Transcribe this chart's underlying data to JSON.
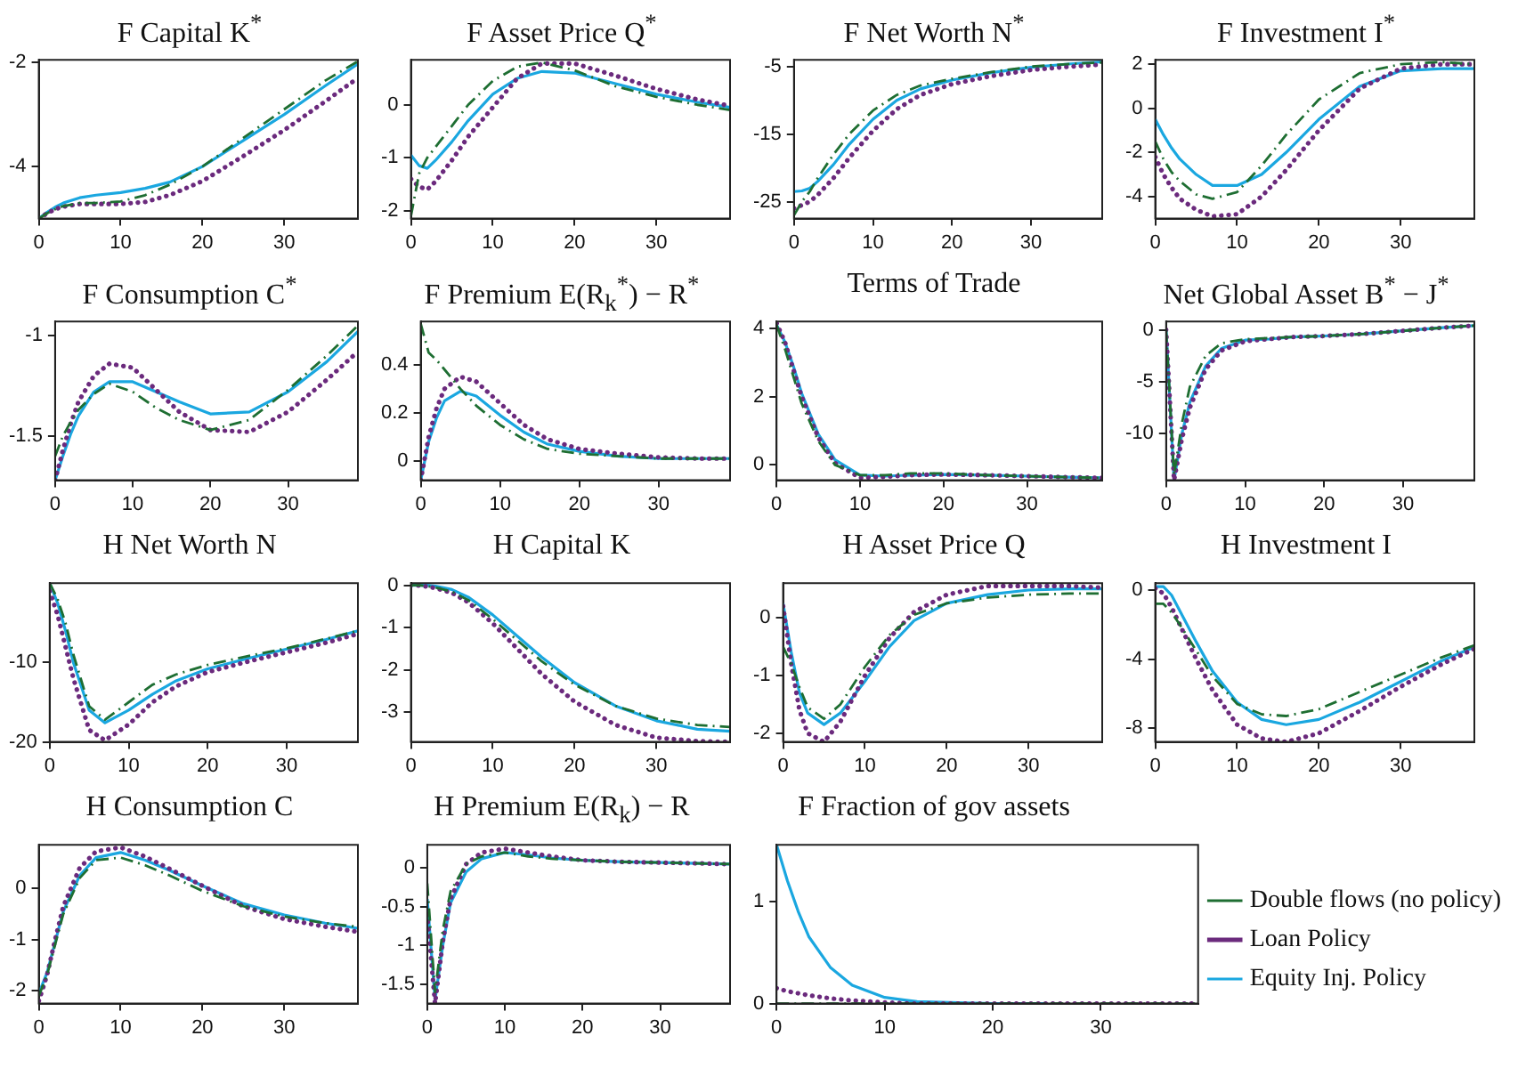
{
  "chart_data": [
    {
      "type": "line",
      "title": "F Capital K$^{*}$",
      "x": [
        0,
        1,
        2,
        3,
        5,
        7,
        10,
        13,
        16,
        20,
        25,
        30,
        35,
        39
      ],
      "xlim": [
        0,
        39
      ],
      "xticks": [
        0,
        10,
        20,
        30
      ],
      "ylim": [
        -5,
        -1.95
      ],
      "yticks": [
        -4,
        -2
      ],
      "grid": false,
      "legend": false,
      "marker": "none",
      "series": [
        {
          "color": "#1e6e32",
          "line_style": "dashdot",
          "values": [
            -5,
            -4.9,
            -4.82,
            -4.76,
            -4.7,
            -4.7,
            -4.67,
            -4.55,
            -4.35,
            -4.0,
            -3.45,
            -2.9,
            -2.35,
            -1.98
          ]
        },
        {
          "color": "#6b2a7d",
          "line_style": "dotted",
          "values": [
            -5,
            -4.9,
            -4.82,
            -4.77,
            -4.72,
            -4.72,
            -4.72,
            -4.68,
            -4.55,
            -4.28,
            -3.8,
            -3.3,
            -2.75,
            -2.3
          ]
        },
        {
          "color": "#1aa7e0",
          "line_style": "solid",
          "values": [
            -5,
            -4.88,
            -4.78,
            -4.7,
            -4.6,
            -4.55,
            -4.5,
            -4.42,
            -4.3,
            -4.0,
            -3.5,
            -3.0,
            -2.45,
            -2.03
          ]
        }
      ]
    },
    {
      "type": "line",
      "title": "F Asset Price Q$^{*}$",
      "x": [
        0,
        1,
        2,
        3,
        5,
        7,
        10,
        13,
        16,
        20,
        25,
        30,
        35,
        39
      ],
      "xlim": [
        0,
        39
      ],
      "xticks": [
        0,
        10,
        20,
        30
      ],
      "ylim": [
        -2.15,
        0.85
      ],
      "yticks": [
        -2,
        -1,
        0
      ],
      "grid": false,
      "legend": false,
      "marker": "none",
      "series": [
        {
          "color": "#1e6e32",
          "line_style": "dashdot",
          "values": [
            -2.1,
            -1.3,
            -1.0,
            -0.8,
            -0.4,
            0.0,
            0.45,
            0.72,
            0.8,
            0.65,
            0.35,
            0.15,
            0.0,
            -0.1
          ]
        },
        {
          "color": "#6b2a7d",
          "line_style": "dotted",
          "values": [
            -1.4,
            -1.55,
            -1.6,
            -1.45,
            -1.05,
            -0.6,
            -0.05,
            0.5,
            0.78,
            0.78,
            0.55,
            0.3,
            0.1,
            -0.02
          ]
        },
        {
          "color": "#1aa7e0",
          "line_style": "solid",
          "values": [
            -0.95,
            -1.15,
            -1.2,
            -1.05,
            -0.7,
            -0.3,
            0.2,
            0.5,
            0.63,
            0.6,
            0.4,
            0.2,
            0.05,
            -0.05
          ]
        }
      ]
    },
    {
      "type": "line",
      "title": "F Net Worth N$^{*}$",
      "x": [
        0,
        1,
        2,
        3,
        5,
        7,
        10,
        13,
        16,
        20,
        25,
        30,
        35,
        39
      ],
      "xlim": [
        0,
        39
      ],
      "xticks": [
        0,
        10,
        20,
        30
      ],
      "ylim": [
        -27.5,
        -4
      ],
      "yticks": [
        -25,
        -15,
        -5
      ],
      "grid": false,
      "legend": false,
      "marker": "none",
      "series": [
        {
          "color": "#1e6e32",
          "line_style": "dashdot",
          "values": [
            -27,
            -25,
            -23.5,
            -21.5,
            -18,
            -15,
            -11.5,
            -9.2,
            -7.8,
            -6.8,
            -5.8,
            -5,
            -4.6,
            -4.4
          ]
        },
        {
          "color": "#6b2a7d",
          "line_style": "dotted",
          "values": [
            -26,
            -25.5,
            -25,
            -24,
            -21.5,
            -18.5,
            -14.5,
            -11.3,
            -9.2,
            -7.6,
            -6.4,
            -5.5,
            -5,
            -4.7
          ]
        },
        {
          "color": "#1aa7e0",
          "line_style": "solid",
          "values": [
            -23.5,
            -23.4,
            -23,
            -22,
            -19.5,
            -16.5,
            -12.8,
            -10,
            -8.3,
            -7,
            -5.9,
            -5.1,
            -4.6,
            -4.3
          ]
        }
      ]
    },
    {
      "type": "line",
      "title": "F Investment I$^{*}$",
      "x": [
        0,
        1,
        2,
        3,
        5,
        7,
        10,
        13,
        16,
        20,
        25,
        30,
        35,
        39
      ],
      "xlim": [
        0,
        39
      ],
      "xticks": [
        0,
        10,
        20,
        30
      ],
      "ylim": [
        -5,
        2.2
      ],
      "yticks": [
        -4,
        -2,
        0,
        2
      ],
      "grid": false,
      "legend": false,
      "marker": "none",
      "series": [
        {
          "color": "#1e6e32",
          "line_style": "dashdot",
          "values": [
            -1.5,
            -2.3,
            -2.9,
            -3.3,
            -3.9,
            -4.1,
            -3.8,
            -2.6,
            -1.2,
            0.4,
            1.6,
            2.0,
            2.1,
            2.0
          ]
        },
        {
          "color": "#6b2a7d",
          "line_style": "dotted",
          "values": [
            -2.2,
            -3,
            -3.6,
            -4.1,
            -4.6,
            -4.9,
            -4.8,
            -4.0,
            -2.8,
            -1.0,
            0.9,
            1.8,
            2.0,
            2.0
          ]
        },
        {
          "color": "#1aa7e0",
          "line_style": "solid",
          "values": [
            -0.5,
            -1.2,
            -1.8,
            -2.3,
            -3.0,
            -3.5,
            -3.5,
            -3.0,
            -2.0,
            -0.5,
            1.0,
            1.7,
            1.8,
            1.8
          ]
        }
      ]
    },
    {
      "type": "line",
      "title": "F Consumption C$^{*}$",
      "x": [
        0,
        1,
        2,
        3,
        5,
        7,
        10,
        13,
        16,
        20,
        25,
        30,
        35,
        39
      ],
      "xlim": [
        0,
        39
      ],
      "xticks": [
        0,
        10,
        20,
        30
      ],
      "ylim": [
        -1.72,
        -0.93
      ],
      "yticks": [
        -1.5,
        -1
      ],
      "grid": false,
      "legend": false,
      "marker": "none",
      "series": [
        {
          "color": "#1e6e32",
          "line_style": "dashdot",
          "values": [
            -1.6,
            -1.5,
            -1.43,
            -1.37,
            -1.29,
            -1.24,
            -1.28,
            -1.36,
            -1.42,
            -1.47,
            -1.42,
            -1.27,
            -1.1,
            -0.95
          ]
        },
        {
          "color": "#6b2a7d",
          "line_style": "dotted",
          "values": [
            -1.72,
            -1.57,
            -1.44,
            -1.33,
            -1.2,
            -1.14,
            -1.16,
            -1.27,
            -1.38,
            -1.47,
            -1.48,
            -1.38,
            -1.22,
            -1.08
          ]
        },
        {
          "color": "#1aa7e0",
          "line_style": "solid",
          "values": [
            -1.72,
            -1.6,
            -1.49,
            -1.4,
            -1.28,
            -1.23,
            -1.23,
            -1.28,
            -1.33,
            -1.39,
            -1.38,
            -1.28,
            -1.13,
            -0.98
          ]
        }
      ]
    },
    {
      "type": "line",
      "title": "F Premium E(R$_{k}$$^{*}$) − R$^{*}$",
      "x": [
        0,
        1,
        2,
        3,
        5,
        7,
        10,
        13,
        16,
        20,
        25,
        30,
        35,
        39
      ],
      "xlim": [
        0,
        39
      ],
      "xticks": [
        0,
        10,
        20,
        30
      ],
      "ylim": [
        -0.08,
        0.58
      ],
      "yticks": [
        0,
        0.2,
        0.4
      ],
      "grid": false,
      "legend": false,
      "marker": "none",
      "series": [
        {
          "color": "#1e6e32",
          "line_style": "dashdot",
          "values": [
            0.57,
            0.45,
            0.42,
            0.38,
            0.3,
            0.23,
            0.15,
            0.09,
            0.05,
            0.03,
            0.02,
            0.01,
            0.01,
            0.01
          ]
        },
        {
          "color": "#6b2a7d",
          "line_style": "dotted",
          "values": [
            -0.08,
            0.1,
            0.22,
            0.3,
            0.35,
            0.33,
            0.24,
            0.15,
            0.09,
            0.05,
            0.03,
            0.015,
            0.01,
            0.01
          ]
        },
        {
          "color": "#1aa7e0",
          "line_style": "solid",
          "values": [
            -0.08,
            0.08,
            0.18,
            0.25,
            0.29,
            0.27,
            0.19,
            0.12,
            0.07,
            0.04,
            0.02,
            0.01,
            0.01,
            0.01
          ]
        }
      ]
    },
    {
      "type": "line",
      "title": "Terms of Trade",
      "x": [
        0,
        1,
        2,
        3,
        5,
        7,
        10,
        13,
        16,
        20,
        25,
        30,
        35,
        39
      ],
      "xlim": [
        0,
        39
      ],
      "xticks": [
        0,
        10,
        20,
        30
      ],
      "ylim": [
        -0.45,
        4.2
      ],
      "yticks": [
        0,
        2,
        4
      ],
      "grid": false,
      "legend": false,
      "marker": "none",
      "series": [
        {
          "color": "#1e6e32",
          "line_style": "dashdot",
          "values": [
            4.1,
            3.4,
            2.6,
            1.8,
            0.7,
            0.0,
            -0.3,
            -0.3,
            -0.25,
            -0.25,
            -0.3,
            -0.33,
            -0.36,
            -0.38
          ]
        },
        {
          "color": "#6b2a7d",
          "line_style": "dotted",
          "values": [
            4.15,
            3.6,
            2.8,
            2.0,
            0.8,
            0.05,
            -0.38,
            -0.35,
            -0.3,
            -0.28,
            -0.3,
            -0.33,
            -0.36,
            -0.38
          ]
        },
        {
          "color": "#1aa7e0",
          "line_style": "solid",
          "values": [
            4.1,
            3.6,
            2.9,
            2.1,
            0.9,
            0.15,
            -0.3,
            -0.33,
            -0.3,
            -0.28,
            -0.3,
            -0.33,
            -0.36,
            -0.38
          ]
        }
      ]
    },
    {
      "type": "line",
      "title": "Net Global Asset B$^{*}$ − J$^{*}$",
      "x": [
        0,
        1,
        2,
        3,
        5,
        7,
        10,
        13,
        16,
        20,
        25,
        30,
        35,
        39
      ],
      "xlim": [
        0,
        39
      ],
      "xticks": [
        0,
        10,
        20,
        30
      ],
      "ylim": [
        -14.5,
        0.8
      ],
      "yticks": [
        -10,
        -5,
        0
      ],
      "grid": false,
      "legend": false,
      "marker": "none",
      "series": [
        {
          "color": "#1e6e32",
          "line_style": "dashdot",
          "values": [
            0,
            -14,
            -9,
            -5.5,
            -2.5,
            -1.3,
            -0.9,
            -0.8,
            -0.7,
            -0.6,
            -0.4,
            -0.1,
            0.2,
            0.4
          ]
        },
        {
          "color": "#6b2a7d",
          "line_style": "dotted",
          "values": [
            0,
            -14.5,
            -10.5,
            -7.5,
            -3.8,
            -2.0,
            -1.1,
            -0.9,
            -0.7,
            -0.6,
            -0.4,
            -0.1,
            0.2,
            0.4
          ]
        },
        {
          "color": "#1aa7e0",
          "line_style": "solid",
          "values": [
            0,
            -14.5,
            -10,
            -7,
            -3.5,
            -1.8,
            -1.0,
            -0.9,
            -0.7,
            -0.6,
            -0.4,
            -0.1,
            0.2,
            0.4
          ]
        }
      ]
    },
    {
      "type": "line",
      "title": "H Net Worth N",
      "x": [
        0,
        1,
        2,
        3,
        5,
        7,
        10,
        13,
        16,
        20,
        25,
        30,
        35,
        39
      ],
      "xlim": [
        0,
        39
      ],
      "xticks": [
        0,
        10,
        20,
        30
      ],
      "ylim": [
        -20,
        0
      ],
      "yticks": [
        -20,
        -10
      ],
      "grid": false,
      "legend": false,
      "marker": "none",
      "series": [
        {
          "color": "#1e6e32",
          "line_style": "dashdot",
          "values": [
            0,
            -2,
            -5,
            -9,
            -15.5,
            -17.2,
            -15,
            -12.8,
            -11.5,
            -10.3,
            -9.2,
            -8.2,
            -7,
            -6
          ]
        },
        {
          "color": "#6b2a7d",
          "line_style": "dotted",
          "values": [
            -1,
            -4,
            -8,
            -12,
            -18.5,
            -19.8,
            -17.8,
            -15,
            -13,
            -11.2,
            -9.9,
            -8.7,
            -7.5,
            -6.4
          ]
        },
        {
          "color": "#1aa7e0",
          "line_style": "solid",
          "values": [
            0,
            -2.5,
            -6,
            -10,
            -16,
            -17.6,
            -16,
            -14,
            -12.3,
            -10.8,
            -9.5,
            -8.3,
            -7.1,
            -6
          ]
        }
      ]
    },
    {
      "type": "line",
      "title": "H Capital K",
      "x": [
        0,
        1,
        2,
        3,
        5,
        7,
        10,
        13,
        16,
        20,
        25,
        30,
        35,
        39
      ],
      "xlim": [
        0,
        39
      ],
      "xticks": [
        0,
        10,
        20,
        30
      ],
      "ylim": [
        -3.7,
        0.05
      ],
      "yticks": [
        -3,
        -2,
        -1,
        0
      ],
      "grid": false,
      "legend": false,
      "marker": "none",
      "series": [
        {
          "color": "#1e6e32",
          "line_style": "dashdot",
          "values": [
            0,
            0,
            -0.02,
            -0.05,
            -0.15,
            -0.35,
            -0.8,
            -1.3,
            -1.8,
            -2.35,
            -2.85,
            -3.15,
            -3.3,
            -3.35
          ]
        },
        {
          "color": "#6b2a7d",
          "line_style": "dotted",
          "values": [
            0,
            -0.01,
            -0.03,
            -0.07,
            -0.18,
            -0.4,
            -0.9,
            -1.5,
            -2.1,
            -2.75,
            -3.3,
            -3.6,
            -3.68,
            -3.7
          ]
        },
        {
          "color": "#1aa7e0",
          "line_style": "solid",
          "values": [
            0,
            0,
            0,
            -0.02,
            -0.1,
            -0.28,
            -0.7,
            -1.2,
            -1.7,
            -2.3,
            -2.85,
            -3.2,
            -3.4,
            -3.45
          ]
        }
      ]
    },
    {
      "type": "line",
      "title": "H Asset Price Q",
      "x": [
        0,
        1,
        2,
        3,
        5,
        7,
        10,
        13,
        16,
        20,
        25,
        30,
        35,
        39
      ],
      "xlim": [
        0,
        39
      ],
      "xticks": [
        0,
        10,
        20,
        30
      ],
      "ylim": [
        -2.15,
        0.6
      ],
      "yticks": [
        -2,
        -1,
        0
      ],
      "grid": false,
      "legend": false,
      "marker": "none",
      "series": [
        {
          "color": "#1e6e32",
          "line_style": "dashdot",
          "values": [
            -0.5,
            -0.8,
            -1.2,
            -1.55,
            -1.75,
            -1.5,
            -0.85,
            -0.3,
            0.05,
            0.25,
            0.35,
            0.4,
            0.42,
            0.42
          ]
        },
        {
          "color": "#6b2a7d",
          "line_style": "dotted",
          "values": [
            0.2,
            -0.8,
            -1.6,
            -2.0,
            -2.15,
            -1.8,
            -1.0,
            -0.35,
            0.1,
            0.4,
            0.55,
            0.55,
            0.55,
            0.52
          ]
        },
        {
          "color": "#1aa7e0",
          "line_style": "solid",
          "values": [
            0.25,
            -0.6,
            -1.3,
            -1.65,
            -1.85,
            -1.65,
            -1.1,
            -0.5,
            -0.05,
            0.25,
            0.4,
            0.48,
            0.5,
            0.5
          ]
        }
      ]
    },
    {
      "type": "line",
      "title": "H Investment I",
      "x": [
        0,
        1,
        2,
        3,
        5,
        7,
        10,
        13,
        16,
        20,
        25,
        30,
        35,
        39
      ],
      "xlim": [
        0,
        39
      ],
      "xticks": [
        0,
        10,
        20,
        30
      ],
      "ylim": [
        -8.8,
        0.4
      ],
      "yticks": [
        -8,
        -4,
        0
      ],
      "grid": false,
      "legend": false,
      "marker": "none",
      "series": [
        {
          "color": "#1e6e32",
          "line_style": "dashdot",
          "values": [
            -0.8,
            -0.8,
            -1.3,
            -2,
            -3.5,
            -5,
            -6.6,
            -7.2,
            -7.3,
            -6.9,
            -5.9,
            -4.9,
            -3.9,
            -3.2
          ]
        },
        {
          "color": "#6b2a7d",
          "line_style": "dotted",
          "values": [
            0.1,
            -0.2,
            -1,
            -2,
            -4,
            -5.8,
            -7.8,
            -8.6,
            -8.8,
            -8.3,
            -7,
            -5.6,
            -4.3,
            -3.4
          ]
        },
        {
          "color": "#1aa7e0",
          "line_style": "solid",
          "values": [
            0.2,
            0.2,
            -0.3,
            -1.2,
            -3,
            -4.7,
            -6.5,
            -7.5,
            -7.8,
            -7.5,
            -6.5,
            -5.3,
            -4.1,
            -3.3
          ]
        }
      ]
    },
    {
      "type": "line",
      "title": "H Consumption C",
      "x": [
        0,
        1,
        2,
        3,
        5,
        7,
        10,
        13,
        16,
        20,
        25,
        30,
        35,
        39
      ],
      "xlim": [
        0,
        39
      ],
      "xticks": [
        0,
        10,
        20,
        30
      ],
      "ylim": [
        -2.25,
        0.85
      ],
      "yticks": [
        -2,
        -1,
        0
      ],
      "grid": false,
      "legend": false,
      "marker": "none",
      "series": [
        {
          "color": "#1e6e32",
          "line_style": "dashdot",
          "values": [
            -2.1,
            -1.7,
            -1.1,
            -0.5,
            0.2,
            0.55,
            0.6,
            0.45,
            0.25,
            -0.05,
            -0.35,
            -0.55,
            -0.68,
            -0.75
          ]
        },
        {
          "color": "#6b2a7d",
          "line_style": "dotted",
          "values": [
            -2.2,
            -1.7,
            -1.0,
            -0.35,
            0.4,
            0.72,
            0.8,
            0.62,
            0.38,
            0.05,
            -0.35,
            -0.6,
            -0.75,
            -0.85
          ]
        },
        {
          "color": "#1aa7e0",
          "line_style": "solid",
          "values": [
            -2.05,
            -1.65,
            -1.05,
            -0.45,
            0.25,
            0.6,
            0.7,
            0.55,
            0.35,
            0.05,
            -0.3,
            -0.52,
            -0.68,
            -0.78
          ]
        }
      ]
    },
    {
      "type": "line",
      "title": "H Premium E(R$_{k}$) − R",
      "x": [
        0,
        1,
        2,
        3,
        5,
        7,
        10,
        13,
        16,
        20,
        25,
        30,
        35,
        39
      ],
      "xlim": [
        0,
        39
      ],
      "xticks": [
        0,
        10,
        20,
        30
      ],
      "ylim": [
        -1.75,
        0.3
      ],
      "yticks": [
        -1.5,
        -1,
        -0.5,
        0
      ],
      "grid": false,
      "legend": false,
      "marker": "none",
      "series": [
        {
          "color": "#1e6e32",
          "line_style": "dashdot",
          "values": [
            -0.2,
            -1.6,
            -0.8,
            -0.3,
            0.05,
            0.15,
            0.2,
            0.15,
            0.12,
            0.1,
            0.08,
            0.07,
            0.06,
            0.05
          ]
        },
        {
          "color": "#6b2a7d",
          "line_style": "dotted",
          "values": [
            -0.6,
            -1.75,
            -0.95,
            -0.4,
            0.05,
            0.2,
            0.25,
            0.2,
            0.15,
            0.1,
            0.08,
            0.07,
            0.06,
            0.05
          ]
        },
        {
          "color": "#1aa7e0",
          "line_style": "solid",
          "values": [
            -0.4,
            -1.7,
            -1.0,
            -0.45,
            -0.05,
            0.12,
            0.2,
            0.17,
            0.13,
            0.1,
            0.08,
            0.07,
            0.06,
            0.05
          ]
        }
      ]
    },
    {
      "type": "line",
      "title": "F Fraction of gov assets",
      "x": [
        0,
        1,
        2,
        3,
        5,
        7,
        10,
        13,
        16,
        20,
        25,
        30,
        35,
        39
      ],
      "xlim": [
        0,
        39
      ],
      "xticks": [
        0,
        10,
        20,
        30
      ],
      "ylim": [
        0,
        1.55
      ],
      "yticks": [
        0,
        1
      ],
      "grid": false,
      "legend": "right",
      "marker": "none",
      "series": [
        {
          "name": "Double flows (no policy)",
          "color": "#1e6e32",
          "line_style": "dashdot",
          "values": [
            0,
            0,
            0,
            0,
            0,
            0,
            0,
            0,
            0,
            0,
            0,
            0,
            0,
            0
          ]
        },
        {
          "name": "Loan Policy",
          "color": "#6b2a7d",
          "line_style": "dotted",
          "values": [
            0.15,
            0.12,
            0.1,
            0.08,
            0.05,
            0.03,
            0.01,
            0,
            0,
            0,
            0,
            0,
            0,
            0
          ]
        },
        {
          "name": "Equity Inj. Policy",
          "color": "#1aa7e0",
          "line_style": "solid",
          "values": [
            1.55,
            1.2,
            0.9,
            0.65,
            0.35,
            0.18,
            0.06,
            0.02,
            0.01,
            0,
            0,
            null,
            null,
            null
          ]
        }
      ]
    }
  ]
}
